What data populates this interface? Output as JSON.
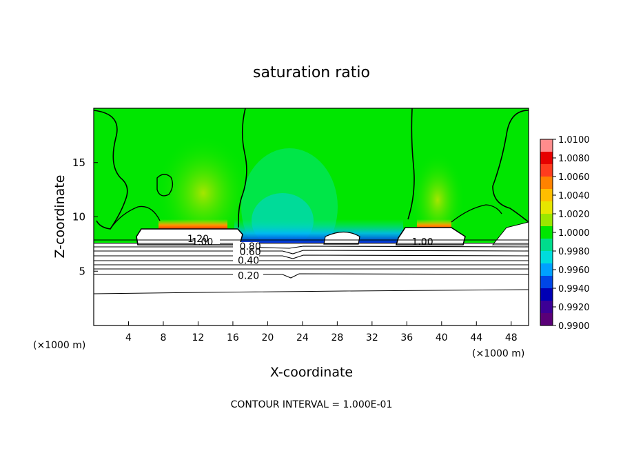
{
  "chart_data": {
    "type": "heatmap",
    "title": "saturation ratio",
    "xlabel": "X-coordinate",
    "ylabel": "Z-coordinate",
    "x_unit_left": "(×1000 m)",
    "x_unit_right": "(×1000 m)",
    "footer": "CONTOUR INTERVAL = 1.000E-01",
    "xlim": [
      0,
      50
    ],
    "ylim": [
      0,
      20
    ],
    "x_ticks": [
      4,
      8,
      12,
      16,
      20,
      24,
      28,
      32,
      36,
      40,
      44,
      48
    ],
    "y_ticks": [
      5,
      10,
      15
    ],
    "colorbar": {
      "min": 0.99,
      "max": 1.01,
      "ticks": [
        "1.0100",
        "1.0080",
        "1.0060",
        "1.0040",
        "1.0020",
        "1.0000",
        "0.9980",
        "0.9960",
        "0.9940",
        "0.9920",
        "0.9900"
      ],
      "colors": [
        "#ff8c8c",
        "#e60000",
        "#ff3c1e",
        "#ff8200",
        "#ffbe00",
        "#e6e600",
        "#9be600",
        "#00e600",
        "#00dc8c",
        "#00dcdc",
        "#00a0ff",
        "#0046e6",
        "#0000b4",
        "#3c0096",
        "#5a0078"
      ]
    },
    "contour_labels": [
      {
        "text": "1.20",
        "x": 12.0,
        "y": 8.0
      },
      {
        "text": "1.00",
        "x": 12.5,
        "y": 7.7
      },
      {
        "text": "0.80",
        "x": 18.0,
        "y": 7.3
      },
      {
        "text": "0.60",
        "x": 18.0,
        "y": 6.8
      },
      {
        "text": "0.40",
        "x": 17.8,
        "y": 6.0
      },
      {
        "text": "0.20",
        "x": 17.8,
        "y": 4.6
      },
      {
        "text": "1.00",
        "x": 37.8,
        "y": 7.7
      }
    ]
  }
}
